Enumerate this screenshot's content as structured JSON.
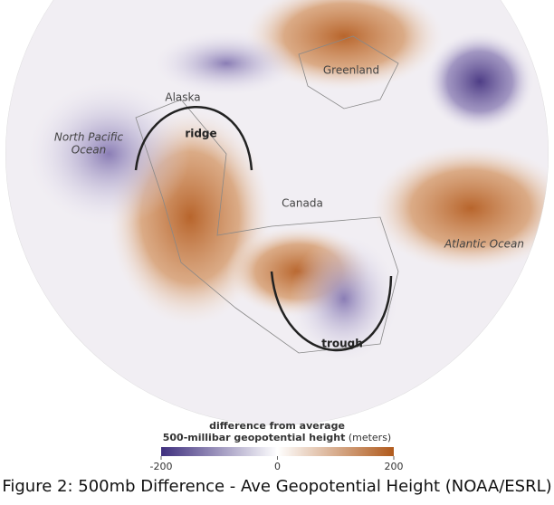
{
  "map": {
    "labels": {
      "greenland": "Greenland",
      "alaska": "Alaska",
      "north_pacific": [
        "North Pacific",
        "Ocean"
      ],
      "ridge": "ridge",
      "canada": "Canada",
      "atlantic": "Atlantic Ocean",
      "trough": "trough"
    },
    "legend": {
      "title": "difference from average",
      "subtitle": "500-millibar geopotential height",
      "unit": "(meters)",
      "range": [
        -200,
        200
      ],
      "ticks": [
        -200,
        0,
        200
      ]
    },
    "caption": "Figure 2: 500mb Difference - Ave Geopotential Height (NOAA/ESRL)"
  }
}
